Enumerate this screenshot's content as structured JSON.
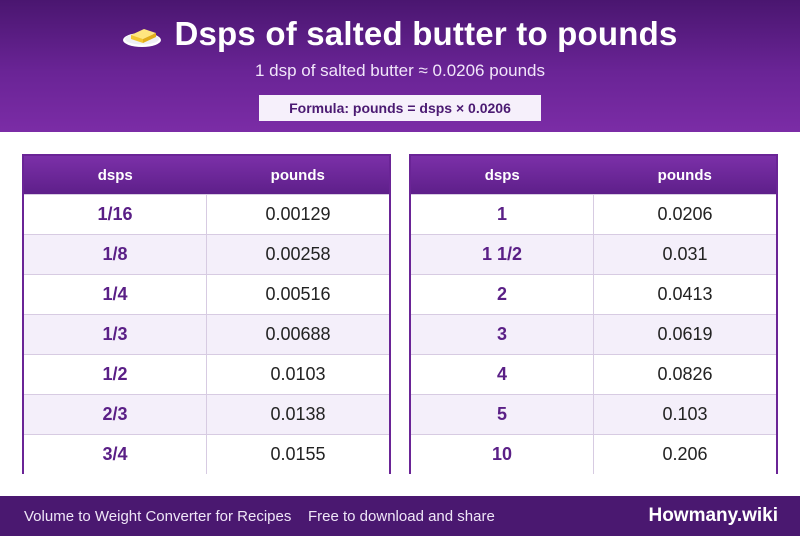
{
  "header": {
    "icon": "butter-icon",
    "title": "Dsps of salted butter to pounds",
    "subtitle": "1 dsp of salted butter ≈ 0.0206 pounds",
    "formula": "Formula: pounds = dsps × 0.0206"
  },
  "tables": [
    {
      "headers": [
        "dsps",
        "pounds"
      ],
      "rows": [
        [
          "1/16",
          "0.00129"
        ],
        [
          "1/8",
          "0.00258"
        ],
        [
          "1/4",
          "0.00516"
        ],
        [
          "1/3",
          "0.00688"
        ],
        [
          "1/2",
          "0.0103"
        ],
        [
          "2/3",
          "0.0138"
        ],
        [
          "3/4",
          "0.0155"
        ]
      ]
    },
    {
      "headers": [
        "dsps",
        "pounds"
      ],
      "rows": [
        [
          "1",
          "0.0206"
        ],
        [
          "1 1/2",
          "0.031"
        ],
        [
          "2",
          "0.0413"
        ],
        [
          "3",
          "0.0619"
        ],
        [
          "4",
          "0.0826"
        ],
        [
          "5",
          "0.103"
        ],
        [
          "10",
          "0.206"
        ]
      ]
    }
  ],
  "footer": {
    "left_text": "Volume to Weight Converter for Recipes",
    "middle_text": "Free to download and share",
    "brand": "Howmany.wiki"
  },
  "colors": {
    "header_purple": "#6a2496",
    "accent_purple": "#5a1f86",
    "footer_purple": "#4a1870"
  }
}
